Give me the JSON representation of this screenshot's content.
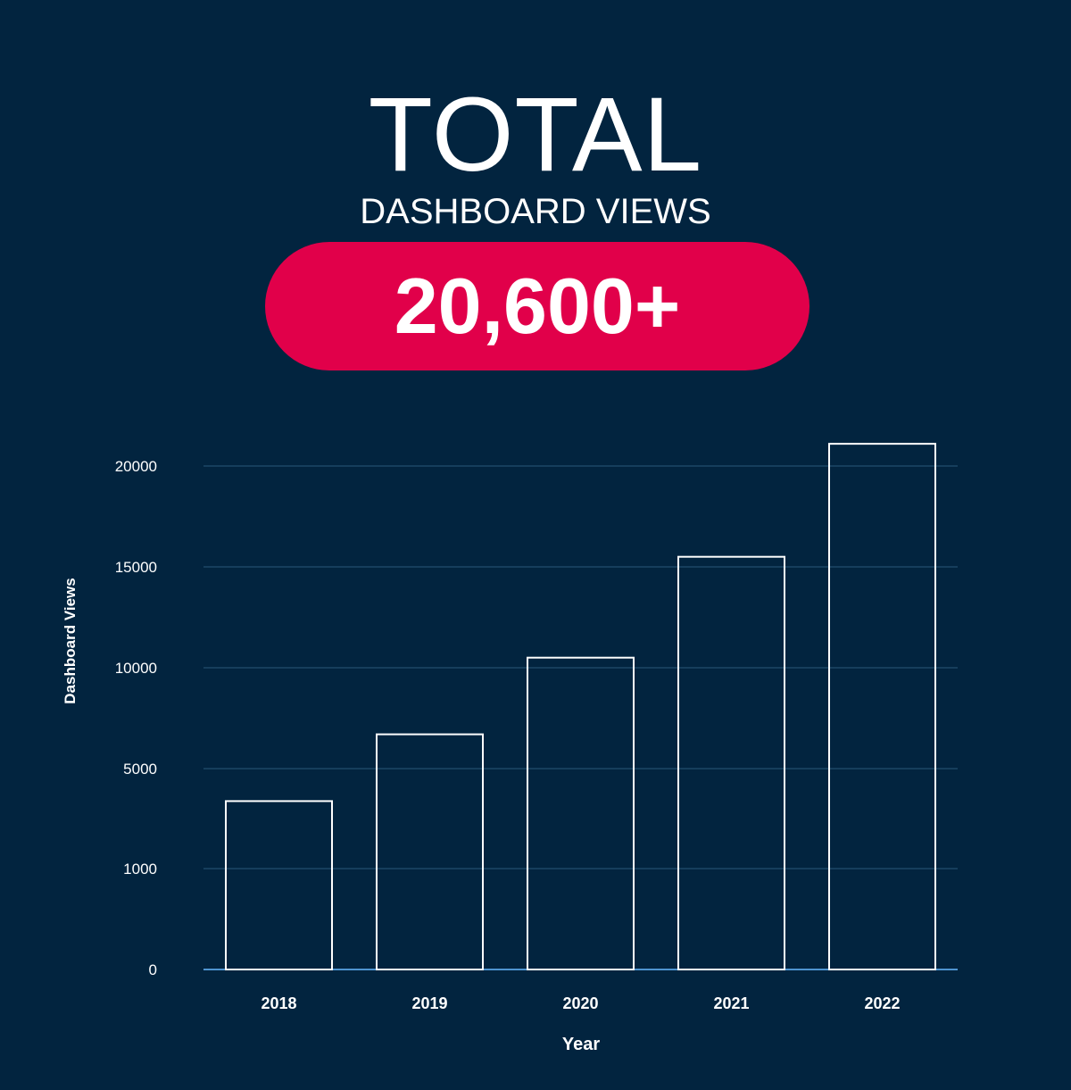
{
  "header": {
    "title": "TOTAL",
    "subtitle": "DASHBOARD VIEWS",
    "total_badge": "20,600+"
  },
  "colors": {
    "background": "#02243f",
    "accent": "#e1004a",
    "bar_stroke": "#ffffff",
    "gridline": "#1d4766",
    "baseline": "#4f94d0"
  },
  "chart_data": {
    "type": "bar",
    "xlabel": "Year",
    "ylabel": "Dashboard Views",
    "categories": [
      "2018",
      "2019",
      "2020",
      "2021",
      "2022"
    ],
    "values": [
      3700,
      6700,
      10500,
      15500,
      21100
    ],
    "yticks": [
      "0",
      "1000",
      "5000",
      "10000",
      "15000",
      "20000"
    ],
    "grid": true,
    "legend": "none"
  }
}
